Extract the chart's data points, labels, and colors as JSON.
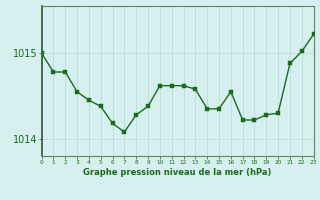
{
  "x": [
    0,
    1,
    2,
    3,
    4,
    5,
    6,
    7,
    8,
    9,
    10,
    11,
    12,
    13,
    14,
    15,
    16,
    17,
    18,
    19,
    20,
    21,
    22,
    23
  ],
  "y": [
    1015.0,
    1014.78,
    1014.78,
    1014.55,
    1014.45,
    1014.38,
    1014.18,
    1014.08,
    1014.28,
    1014.38,
    1014.62,
    1014.62,
    1014.62,
    1014.58,
    1014.35,
    1014.35,
    1014.55,
    1014.22,
    1014.22,
    1014.28,
    1014.3,
    1014.88,
    1015.02,
    1015.22
  ],
  "ylim": [
    1013.8,
    1015.55
  ],
  "yticks": [
    1014,
    1015
  ],
  "xlim": [
    0,
    23
  ],
  "line_color": "#1a6b1a",
  "marker_color": "#1a6b1a",
  "bg_color": "#d6f0f0",
  "grid_color": "#c0dede",
  "axis_label_color": "#1a6b1a",
  "tick_color": "#1a6b1a",
  "border_color": "#5a8a5a",
  "xlabel": "Graphe pression niveau de la mer (hPa)"
}
